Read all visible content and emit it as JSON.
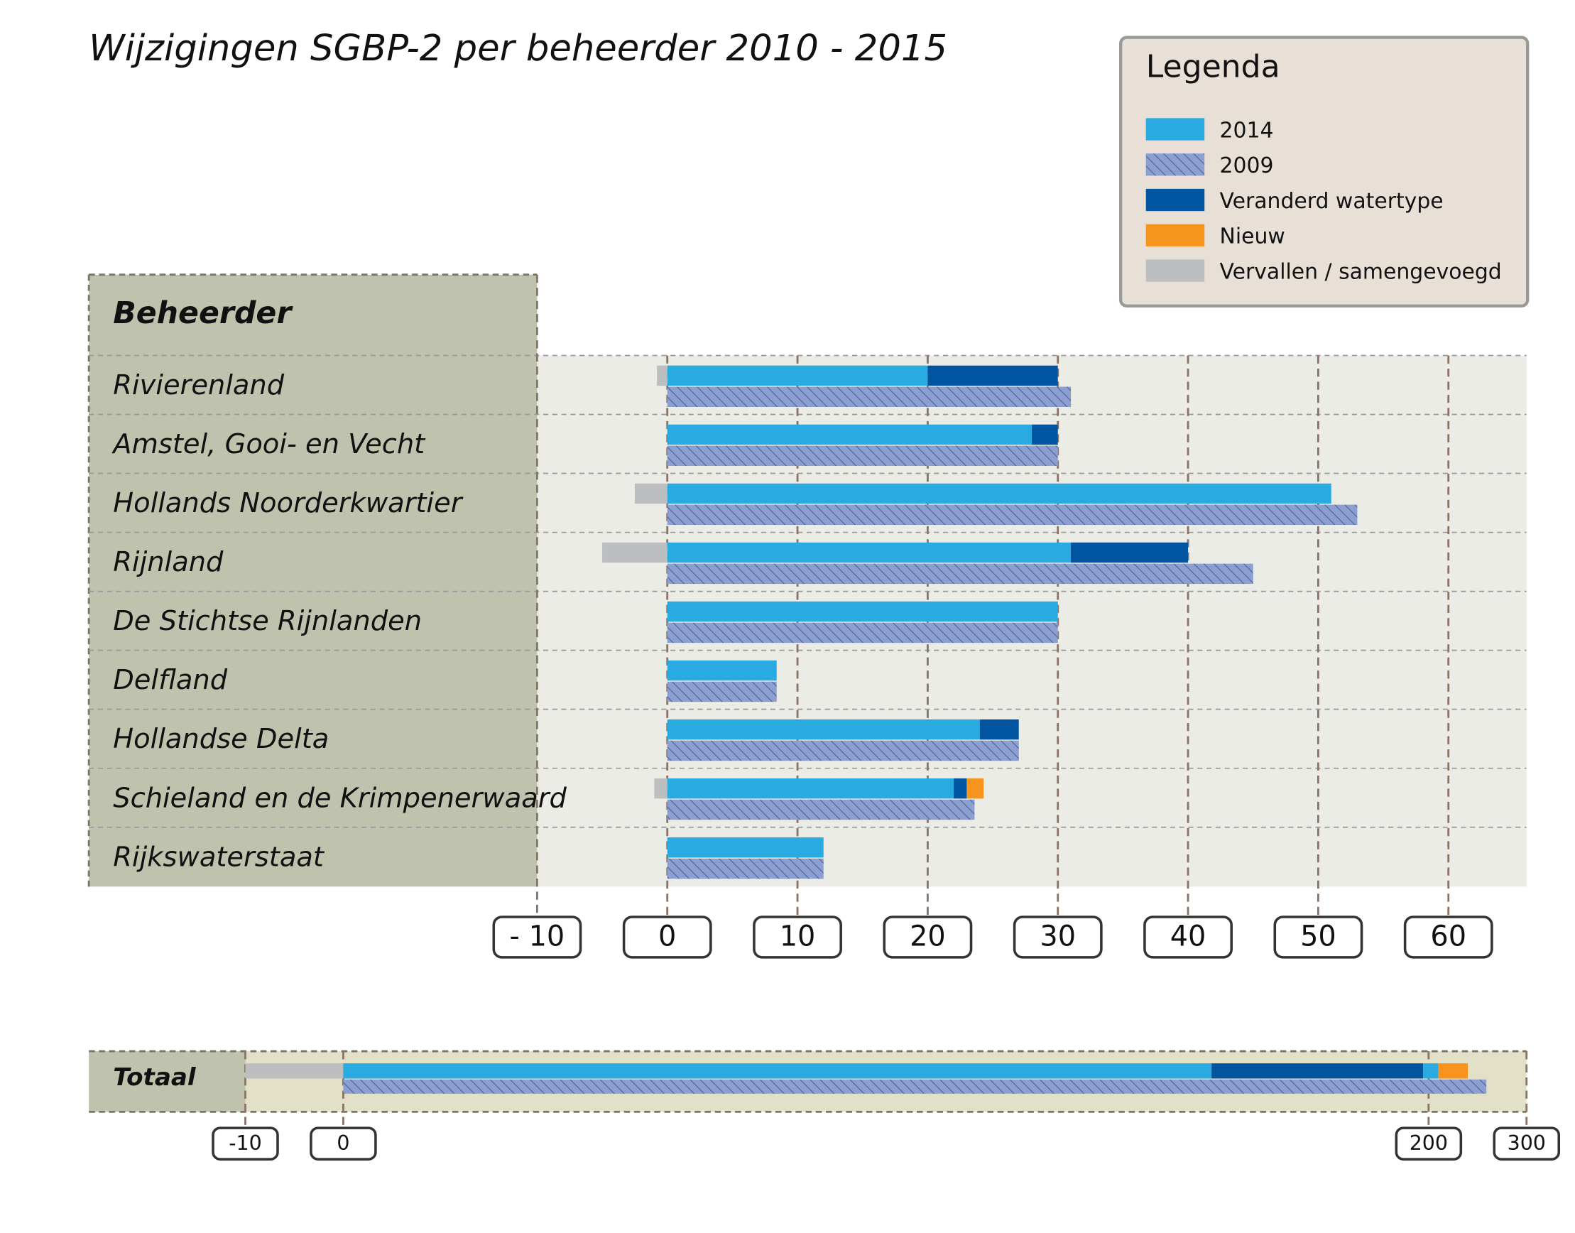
{
  "chart_data": {
    "type": "bar",
    "title": "Wijzigingen SGBP-2 per beheerder 2010 - 2015",
    "legend_title": "Legenda",
    "axis_title": "Beheerder",
    "categories": [
      "Rivierenland",
      "Amstel, Gooi- en Vecht",
      "Hollands Noorderkwartier",
      "Rijnland",
      "De Stichtse Rijnlanden",
      "Delfland",
      "Hollandse Delta",
      "Schieland en de Krimpenerwaard",
      "Rijkswaterstaat"
    ],
    "series": [
      {
        "name": "2014",
        "color": "#29abe2",
        "values": [
          20,
          28,
          51,
          31,
          30,
          8.4,
          24,
          22,
          12
        ]
      },
      {
        "name": "2009",
        "color": "#8b9fd0",
        "hatch": true,
        "values": [
          31,
          30,
          53,
          45,
          30,
          8.4,
          27,
          23.6,
          12
        ]
      },
      {
        "name": "Veranderd watertype",
        "color": "#0054a0",
        "values": [
          10,
          2,
          null,
          9,
          null,
          null,
          3,
          1,
          null
        ]
      },
      {
        "name": "Nieuw",
        "color": "#f7941d",
        "values": [
          null,
          null,
          null,
          null,
          null,
          null,
          null,
          1.3,
          null
        ]
      },
      {
        "name": "Vervallen / samengevoegd",
        "color": "#bcbec0",
        "values": [
          -0.8,
          null,
          -2.5,
          -5,
          null,
          null,
          null,
          -1,
          null
        ]
      }
    ],
    "xlim": [
      -10,
      66
    ],
    "xticks": [
      {
        "value": -10,
        "label": "- 10"
      },
      0,
      10,
      20,
      30,
      40,
      50,
      60
    ],
    "grid": true,
    "total": {
      "label": "Totaal",
      "segments": [
        {
          "series": 0,
          "value": 160
        },
        {
          "series": 2,
          "value": 39
        },
        {
          "series": 0,
          "value": 11
        },
        {
          "series": 3,
          "value": 30
        }
      ],
      "removed": -10,
      "previous": 259,
      "xlim": [
        -10,
        300
      ],
      "xticks": [
        -10,
        0,
        200,
        300
      ]
    }
  }
}
